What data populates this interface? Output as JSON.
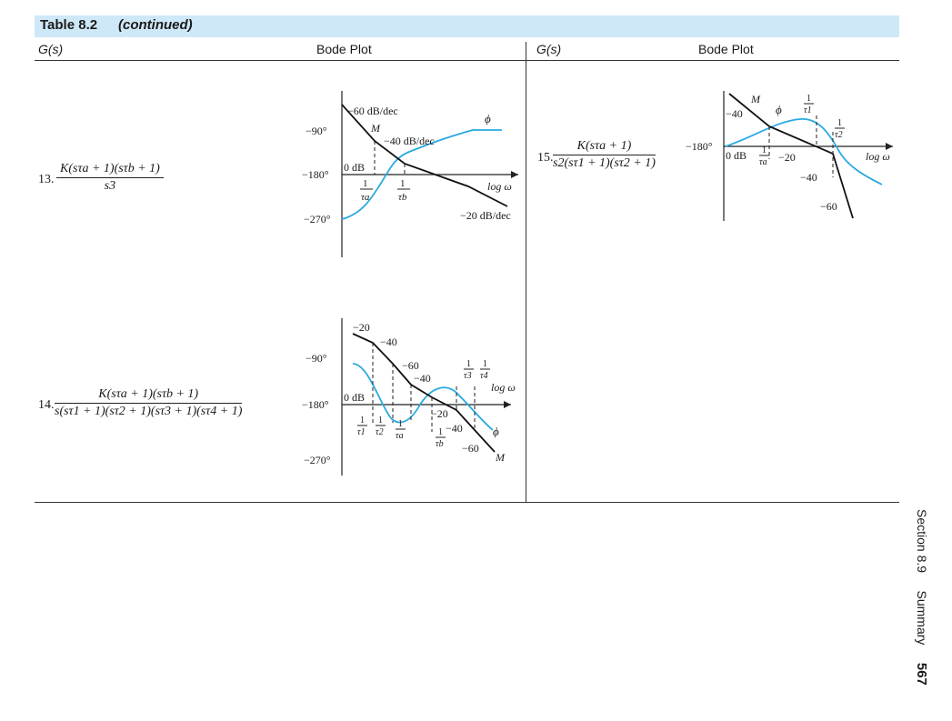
{
  "table": {
    "label": "Table 8.2",
    "continued": "(continued)",
    "col_gs": "G(s)",
    "col_bode": "Bode Plot"
  },
  "rows": [
    {
      "number": "13.",
      "numerator": "K(sτa + 1)(sτb + 1)",
      "denominator": "s3",
      "plot": {
        "deg_labels": [
          "−90°",
          "−180°",
          "−270°"
        ],
        "odb": "0 dB",
        "slopes": [
          "−60 dB/dec",
          "−40 dB/dec",
          "−20 dB/dec"
        ],
        "M": "M",
        "phi": "ϕ",
        "logw": "log ω",
        "breaks": [
          "τa",
          "τb"
        ]
      }
    },
    {
      "number": "14.",
      "numerator": "K(sτa + 1)(sτb + 1)",
      "denominator": "s(sτ1 + 1)(sτ2 + 1)(sτ3 + 1)(sτ4 + 1)",
      "plot": {
        "deg_labels": [
          "−90°",
          "−180°",
          "−270°"
        ],
        "odb": "0 dB",
        "slopes": [
          "−20",
          "−40",
          "−60",
          "−40",
          "−20",
          "−40",
          "−60"
        ],
        "M": "M",
        "phi": "ϕ",
        "logw": "log ω",
        "breaks": [
          "τ1",
          "τ2",
          "τa",
          "τb",
          "τ3",
          "τ4"
        ]
      }
    },
    {
      "number": "15.",
      "numerator": "K(sτa + 1)",
      "denominator": "s2(sτ1 + 1)(sτ2 + 1)",
      "plot": {
        "deg_labels": [
          "−180°"
        ],
        "odb": "0 dB",
        "slopes": [
          "−40",
          "−20",
          "−40",
          "−60"
        ],
        "M": "M",
        "phi": "ϕ",
        "logw": "log ω",
        "breaks": [
          "τa",
          "τ1",
          "τ2"
        ]
      }
    }
  ],
  "frac_one": "1",
  "footer": {
    "section": "Section 8.9",
    "summary": "Summary",
    "page": "567"
  },
  "colors": {
    "header_bg": "#cfe8f7",
    "phase": "#29a9e0",
    "magnitude": "#111111"
  }
}
